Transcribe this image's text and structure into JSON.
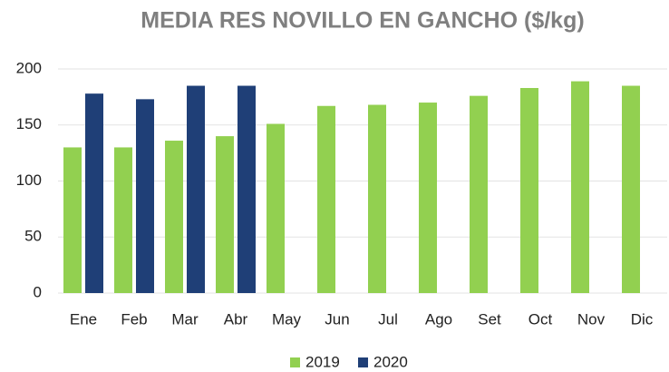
{
  "chart_data": {
    "type": "bar",
    "title": "MEDIA RES NOVILLO EN GANCHO ($/kg)",
    "categories": [
      "Ene",
      "Feb",
      "Mar",
      "Abr",
      "May",
      "Jun",
      "Jul",
      "Ago",
      "Set",
      "Oct",
      "Nov",
      "Dic"
    ],
    "series": [
      {
        "name": "2019",
        "color": "#92d050",
        "values": [
          130,
          130,
          136,
          140,
          151,
          167,
          168,
          170,
          176,
          183,
          189,
          185
        ]
      },
      {
        "name": "2020",
        "color": "#1f3f77",
        "values": [
          178,
          173,
          185,
          185,
          null,
          null,
          null,
          null,
          null,
          null,
          null,
          null
        ]
      }
    ],
    "ylim": [
      0,
      200
    ],
    "yticks": [
      0,
      50,
      100,
      150,
      200
    ],
    "grid": true,
    "legend": "bottom"
  }
}
